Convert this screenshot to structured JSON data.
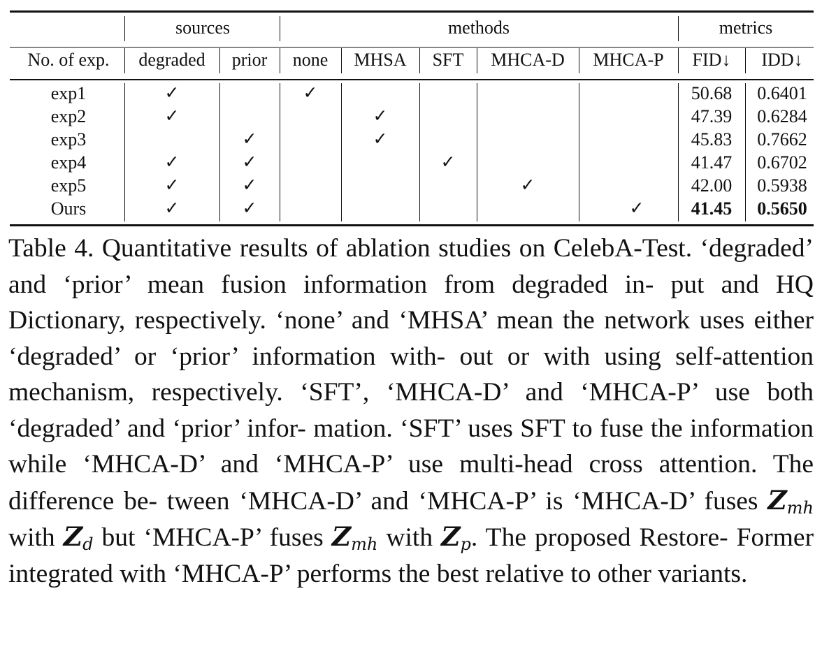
{
  "table": {
    "groups": {
      "sources": "sources",
      "methods": "methods",
      "metrics": "metrics"
    },
    "headers": {
      "no_exp": "No. of exp.",
      "degraded": "degraded",
      "prior": "prior",
      "none": "none",
      "mhsa": "MHSA",
      "sft": "SFT",
      "mhca_d": "MHCA-D",
      "mhca_p": "MHCA-P",
      "fid": "FID↓",
      "idd": "IDD↓"
    },
    "check_mark": "✓",
    "rows": [
      {
        "name": "exp1",
        "degraded": true,
        "prior": false,
        "method": "none",
        "fid": "50.68",
        "idd": "0.6401",
        "bold": false
      },
      {
        "name": "exp2",
        "degraded": true,
        "prior": false,
        "method": "MHSA",
        "fid": "47.39",
        "idd": "0.6284",
        "bold": false
      },
      {
        "name": "exp3",
        "degraded": false,
        "prior": true,
        "method": "MHSA",
        "fid": "45.83",
        "idd": "0.7662",
        "bold": false
      },
      {
        "name": "exp4",
        "degraded": true,
        "prior": true,
        "method": "SFT",
        "fid": "41.47",
        "idd": "0.6702",
        "bold": false
      },
      {
        "name": "exp5",
        "degraded": true,
        "prior": true,
        "method": "MHCA-D",
        "fid": "42.00",
        "idd": "0.5938",
        "bold": false
      },
      {
        "name": "Ours",
        "degraded": true,
        "prior": true,
        "method": "MHCA-P",
        "fid": "41.45",
        "idd": "0.5650",
        "bold": true
      }
    ]
  },
  "caption": {
    "l1": "Table 4.  Quantitative results of ablation studies on CelebA-Test.",
    "l2": "‘degraded’ and ‘prior’ mean fusion information from degraded in-",
    "l3": "put and HQ Dictionary, respectively.  ‘none’ and ‘MHSA’ mean",
    "l4": "the network uses either ‘degraded’ or ‘prior’ information with-",
    "l5": "out or with using self-attention mechanism, respectively.  ‘SFT’,",
    "l6": "‘MHCA-D’ and ‘MHCA-P’ use both ‘degraded’ and ‘prior’ infor-",
    "l7": "mation.  ‘SFT’ uses SFT to fuse the information while ‘MHCA-D’",
    "l8": "and ‘MHCA-P’ use multi-head cross attention. The difference be-",
    "l9a": "tween ‘MHCA-D’ and ‘MHCA-P’ is ‘MHCA-D’ fuses",
    "l9b": "with",
    "l10a": "but ‘MHCA-P’ fuses",
    "l10b": "with",
    "l10c": ".  The proposed Restore-",
    "l11": "Former integrated with ‘MHCA-P’ performs the best relative to",
    "l12": "other variants.",
    "math": {
      "Z": "Z",
      "mh": "mh",
      "d": "d",
      "p": "p"
    }
  }
}
